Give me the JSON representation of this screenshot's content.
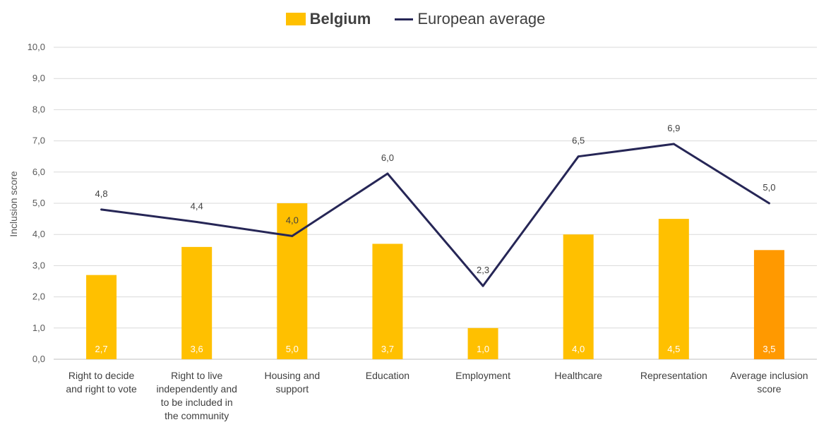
{
  "chart_data": {
    "type": "bar",
    "ylabel": "Inclusion score",
    "ylim": [
      0,
      10
    ],
    "yticks": [
      "0,0",
      "1,0",
      "2,0",
      "3,0",
      "4,0",
      "5,0",
      "6,0",
      "7,0",
      "8,0",
      "9,0",
      "10,0"
    ],
    "categories": [
      [
        "Right to decide",
        "and right to vote"
      ],
      [
        "Right to live",
        "independently and",
        "to be included in",
        "the community"
      ],
      [
        "Housing and",
        "support"
      ],
      [
        "Education"
      ],
      [
        "Employment"
      ],
      [
        "Healthcare"
      ],
      [
        "Representation"
      ],
      [
        "Average inclusion",
        "score"
      ]
    ],
    "series": [
      {
        "name": "Belgium",
        "kind": "bar",
        "values": [
          2.7,
          3.6,
          5.0,
          3.7,
          1.0,
          4.0,
          4.5,
          3.5
        ],
        "labels": [
          "2,7",
          "3,6",
          "5,0",
          "3,7",
          "1,0",
          "4,0",
          "4,5",
          "3,5"
        ],
        "color": "#ffc000",
        "highlight_color": "#ff9900",
        "highlight_index": 7
      },
      {
        "name": "European average",
        "kind": "line",
        "values": [
          4.8,
          4.4,
          3.95,
          5.95,
          2.35,
          6.5,
          6.9,
          5.0
        ],
        "labels": [
          "4,8",
          "4,4",
          "4,0",
          "6,0",
          "2,3",
          "6,5",
          "6,9",
          "5,0"
        ],
        "color": "#262656"
      }
    ],
    "grid": true,
    "legend_position": "top-center"
  }
}
